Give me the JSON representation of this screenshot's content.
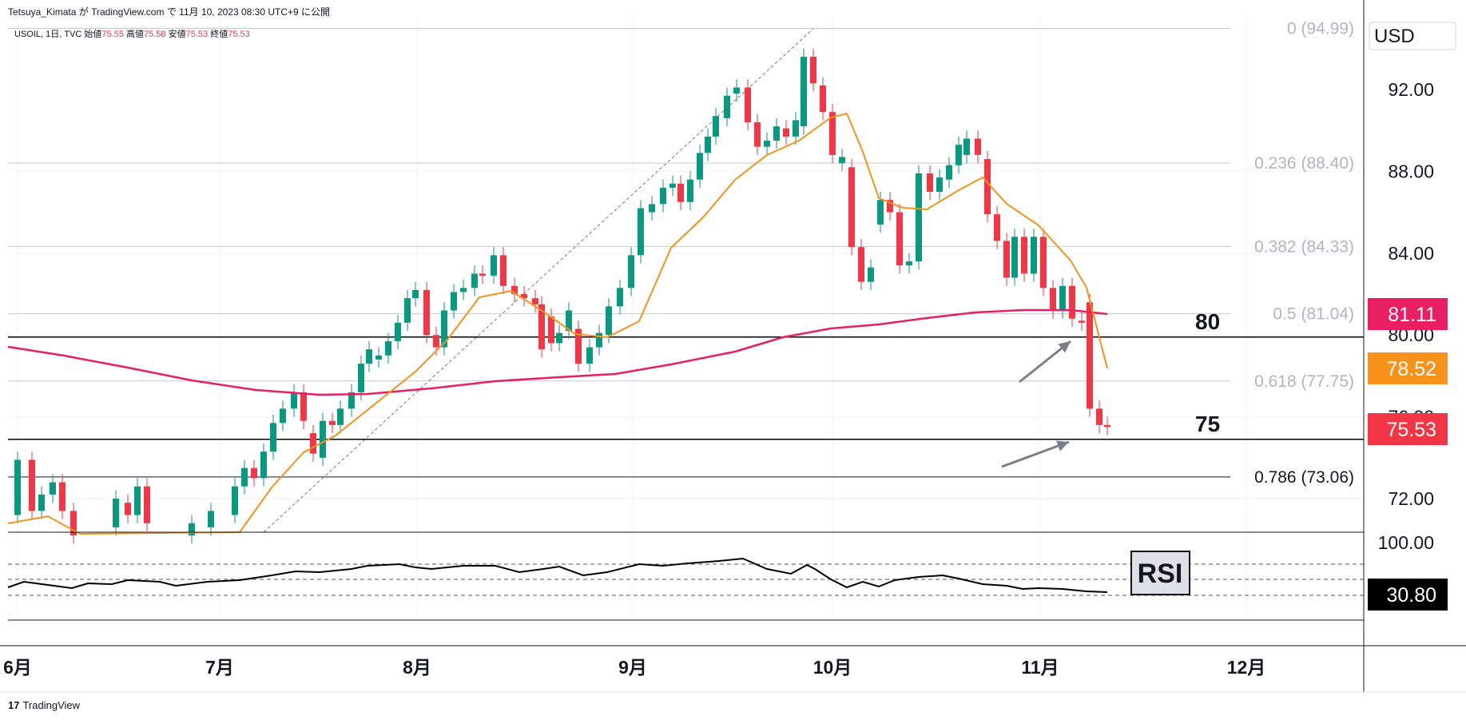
{
  "header": {
    "author": "Tetsuya_Kimata",
    "site_prefix": "が",
    "site": "TradingView.com",
    "date_text": "で 11月 10, 2023 08:30 UTC+9 に公開"
  },
  "symbol": {
    "name": "USOIL, 1日, TVC",
    "open_label": "始値",
    "open": "75.55",
    "high_label": "高値",
    "high": "75.58",
    "low_label": "安値",
    "low": "75.53",
    "close_label": "終値",
    "close": "75.53"
  },
  "footer": {
    "logo_mark": "17",
    "logo_text": "TradingView"
  },
  "colors": {
    "up": "#089981",
    "down": "#f23645",
    "ma_fast": "#f7931a",
    "ma_slow": "#e91e63",
    "fib": "#b2b5be",
    "rsi": "#000000"
  },
  "chart_data": {
    "type": "candlestick",
    "currency_label": "USD",
    "y_ticks": [
      "92.00",
      "88.00",
      "84.00",
      "80.00",
      "76.00",
      "72.00"
    ],
    "ylim": [
      69.4,
      95.0
    ],
    "x_months": [
      "6月",
      "7月",
      "8月",
      "9月",
      "10月",
      "11月",
      "12月"
    ],
    "fib_levels": [
      {
        "label": "0 (94.99)",
        "value": 94.99
      },
      {
        "label": "0.236 (88.40)",
        "value": 88.4
      },
      {
        "label": "0.382 (84.33)",
        "value": 84.33
      },
      {
        "label": "0.5 (81.04)",
        "value": 81.04
      },
      {
        "label": "0.618 (77.75)",
        "value": 77.75
      },
      {
        "label": "0.786 (73.06)",
        "value": 73.06
      }
    ],
    "horizontal_lines": [
      {
        "label": "80",
        "value": 79.9
      },
      {
        "label": "75",
        "value": 74.9
      }
    ],
    "price_tags": [
      {
        "label": "81.11",
        "value": 81.11,
        "color": "#e91e63"
      },
      {
        "label": "78.52",
        "value": 78.52,
        "color": "#f7931a"
      },
      {
        "label": "75.53",
        "value": 75.53,
        "color": "#f23645"
      }
    ],
    "annotations": [
      "80",
      "75",
      "RSI"
    ],
    "rsi": {
      "ticks": [
        "100.00"
      ],
      "last": "30.80"
    }
  }
}
